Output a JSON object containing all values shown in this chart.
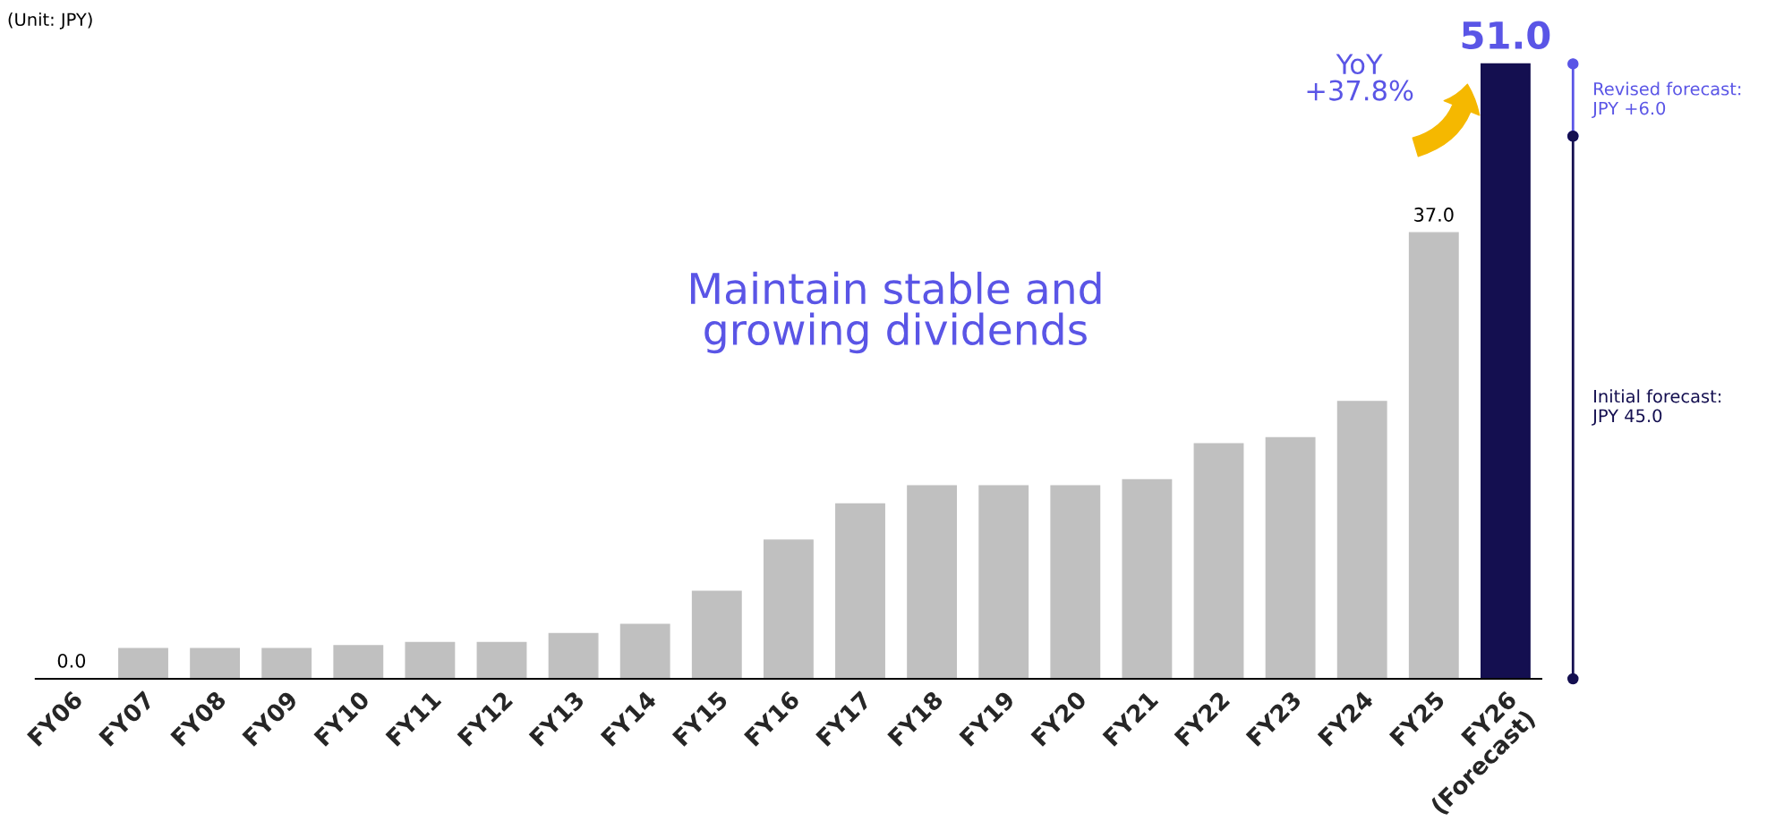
{
  "chart_data": {
    "type": "bar",
    "categories": [
      "FY06",
      "FY07",
      "FY08",
      "FY09",
      "FY10",
      "FY11",
      "FY12",
      "FY13",
      "FY14",
      "FY15",
      "FY16",
      "FY17",
      "FY18",
      "FY19",
      "FY20",
      "FY21",
      "FY22",
      "FY23",
      "FY24",
      "FY25",
      "FY26\n(Forecast)"
    ],
    "values": [
      0.0,
      2.5,
      2.5,
      2.5,
      2.75,
      3.0,
      3.0,
      3.75,
      4.5,
      7.25,
      11.5,
      14.5,
      16.0,
      16.0,
      16.0,
      16.5,
      19.5,
      20.0,
      23.0,
      37.0,
      51.0
    ],
    "colors": [
      "#c0c0c0",
      "#c0c0c0",
      "#c0c0c0",
      "#c0c0c0",
      "#c0c0c0",
      "#c0c0c0",
      "#c0c0c0",
      "#c0c0c0",
      "#c0c0c0",
      "#c0c0c0",
      "#c0c0c0",
      "#c0c0c0",
      "#c0c0c0",
      "#c0c0c0",
      "#c0c0c0",
      "#c0c0c0",
      "#c0c0c0",
      "#c0c0c0",
      "#c0c0c0",
      "#c0c0c0",
      "#140f50"
    ],
    "value_labels": [
      "0.0",
      null,
      null,
      null,
      null,
      null,
      null,
      null,
      null,
      null,
      null,
      null,
      null,
      null,
      null,
      null,
      null,
      null,
      null,
      "37.0",
      "51.0"
    ],
    "annotations": [
      "(Unit: JPY)",
      "Maintain stable and\ngrowing dividends",
      "YoY\n+37.8%",
      "Revised forecast:\nJPY +6.0",
      "Initial forecast:\nJPY 45.0"
    ],
    "grid": false,
    "legend": false
  }
}
